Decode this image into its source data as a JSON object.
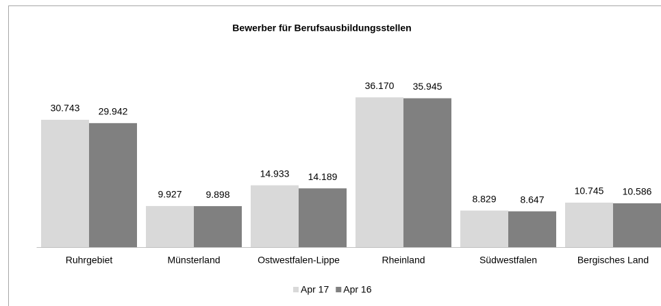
{
  "chart_data": {
    "type": "bar",
    "title": "Bewerber für Berufsausbildungsstellen",
    "categories": [
      "Ruhrgebiet",
      "Münsterland",
      "Ostwestfalen-Lippe",
      "Rheinland",
      "Südwestfalen",
      "Bergisches Land"
    ],
    "series": [
      {
        "name": "Apr 17",
        "color": "#d9d9d9",
        "values": [
          30743,
          9927,
          14933,
          36170,
          8829,
          10745
        ],
        "value_labels": [
          "30.743",
          "9.927",
          "14.933",
          "36.170",
          "8.829",
          "10.745"
        ]
      },
      {
        "name": "Apr 16",
        "color": "#808080",
        "values": [
          29942,
          9898,
          14189,
          35945,
          8647,
          10586
        ],
        "value_labels": [
          "29.942",
          "9.898",
          "14.189",
          "35.945",
          "8.647",
          "10.586"
        ]
      }
    ],
    "ylim": [
      0,
      40000
    ],
    "legend": "bottom"
  }
}
